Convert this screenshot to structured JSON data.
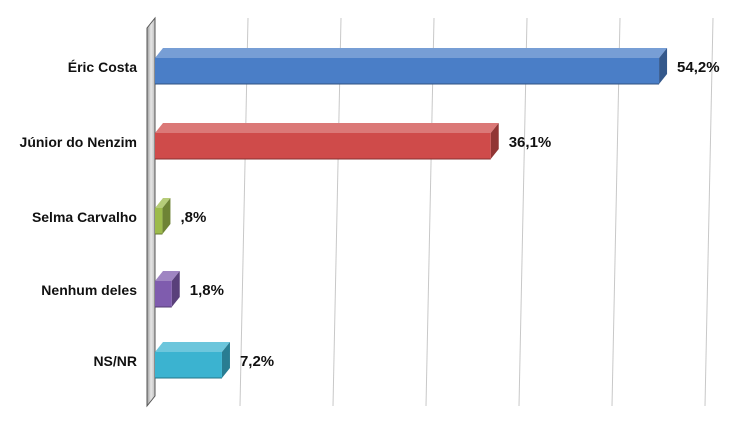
{
  "chart_data": {
    "type": "bar",
    "orientation": "horizontal",
    "categories": [
      "Éric Costa",
      "Júnior do Nenzim",
      "Selma Carvalho",
      "Nenhum deles",
      "NS/NR"
    ],
    "values": [
      54.2,
      36.1,
      0.8,
      1.8,
      7.2
    ],
    "value_labels": [
      "54,2%",
      "36,1%",
      ",8%",
      "1,8%",
      "7,2%"
    ],
    "colors": [
      "#4a7ec7",
      "#cf4b4a",
      "#9dbb4c",
      "#7f5cae",
      "#3bb3d0"
    ],
    "xlim": [
      0,
      60
    ],
    "grid": true,
    "legend": "none",
    "style": "3d"
  }
}
